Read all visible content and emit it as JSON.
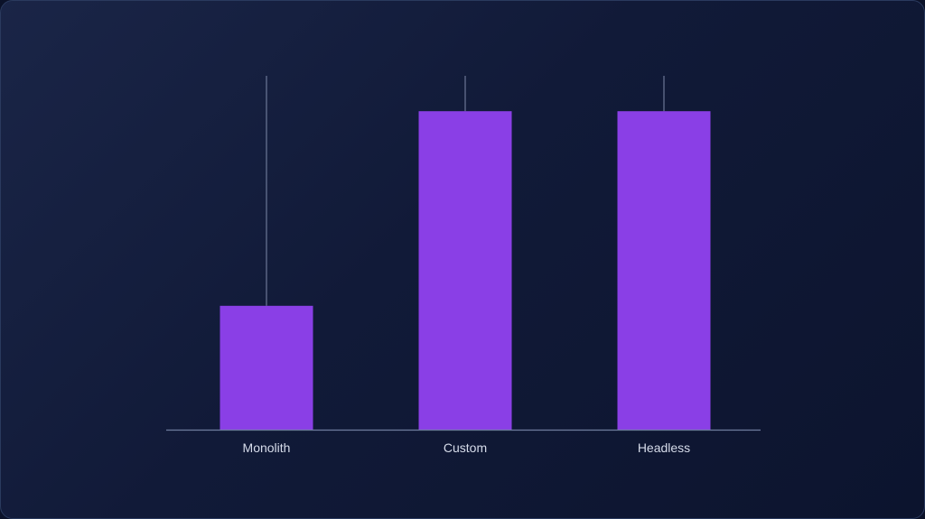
{
  "chart_data": {
    "type": "bar",
    "categories": [
      "Monolith",
      "Custom",
      "Headless"
    ],
    "values": [
      3.5,
      9,
      9
    ],
    "error_high": [
      10,
      10,
      10
    ],
    "ylim": [
      0,
      10
    ],
    "title": "",
    "xlabel": "",
    "ylabel": "",
    "grid": false,
    "legend": "none"
  },
  "colors": {
    "bar": "#8a3fe6",
    "whisker": "#7d89a8",
    "axis": "#6f7d9e",
    "label": "#d6dcea"
  }
}
